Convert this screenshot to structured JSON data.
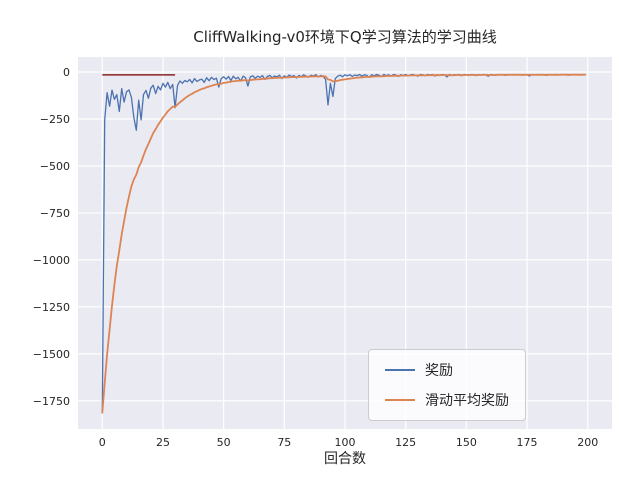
{
  "chart_data": {
    "type": "line",
    "title": "CliffWalking-v0环境下Q学习算法的学习曲线",
    "xlabel": "回合数",
    "ylabel": "",
    "grid": true,
    "legend_position": "lower right",
    "xlim": [
      -10,
      210
    ],
    "ylim": [
      -1900,
      80
    ],
    "xticks": [
      0,
      25,
      50,
      75,
      100,
      125,
      150,
      175,
      200
    ],
    "yticks": [
      0,
      -250,
      -500,
      -750,
      -1000,
      -1250,
      -1500,
      -1750
    ],
    "x": {
      "start": 0,
      "step": 1,
      "count": 200
    },
    "series": [
      {
        "name": "奖励",
        "color": "#4c72b0",
        "values": [
          -1813,
          -256,
          -110,
          -182,
          -96,
          -145,
          -120,
          -210,
          -88,
          -160,
          -105,
          -95,
          -135,
          -240,
          -310,
          -150,
          -255,
          -120,
          -98,
          -140,
          -86,
          -70,
          -115,
          -76,
          -95,
          -60,
          -80,
          -55,
          -88,
          -66,
          -190,
          -72,
          -48,
          -60,
          -45,
          -52,
          -40,
          -58,
          -35,
          -50,
          -42,
          -38,
          -55,
          -30,
          -46,
          -28,
          -40,
          -33,
          -80,
          -35,
          -25,
          -38,
          -24,
          -45,
          -22,
          -36,
          -28,
          -48,
          -22,
          -30,
          -75,
          -26,
          -20,
          -34,
          -22,
          -28,
          -19,
          -40,
          -24,
          -18,
          -30,
          -21,
          -26,
          -17,
          -35,
          -20,
          -28,
          -16,
          -24,
          -19,
          -32,
          -18,
          -25,
          -15,
          -22,
          -27,
          -17,
          -21,
          -14,
          -26,
          -18,
          -22,
          -40,
          -175,
          -60,
          -130,
          -35,
          -22,
          -17,
          -25,
          -15,
          -20,
          -14,
          -24,
          -16,
          -19,
          -13,
          -22,
          -15,
          -18,
          -28,
          -14,
          -20,
          -13,
          -17,
          -23,
          -13,
          -19,
          -15,
          -21,
          -13,
          -16,
          -24,
          -14,
          -18,
          -13,
          -20,
          -15,
          -13,
          -17,
          -22,
          -13,
          -15,
          -19,
          -13,
          -16,
          -13,
          -21,
          -14,
          -17,
          -13,
          -15,
          -26,
          -13,
          -18,
          -14,
          -16,
          -13,
          -20,
          -13,
          -15,
          -17,
          -13,
          -14,
          -19,
          -13,
          -16,
          -13,
          -15,
          -22,
          -13,
          -14,
          -17,
          -13,
          -15,
          -13,
          -18,
          -13,
          -14,
          -16,
          -13,
          -15,
          -13,
          -17,
          -13,
          -14,
          -21,
          -13,
          -15,
          -13,
          -16,
          -13,
          -14,
          -18,
          -13,
          -15,
          -13,
          -14,
          -16,
          -13,
          -15,
          -13,
          -17,
          -13,
          -14,
          -13,
          -16,
          -13,
          -14,
          -13
        ]
      },
      {
        "name": "滑动平均奖励",
        "color": "#dd8452",
        "values": [
          -1813,
          -1657,
          -1503,
          -1371,
          -1243,
          -1133,
          -1032,
          -950,
          -864,
          -793,
          -724,
          -662,
          -609,
          -572,
          -546,
          -506,
          -481,
          -445,
          -410,
          -383,
          -354,
          -325,
          -304,
          -281,
          -263,
          -242,
          -226,
          -209,
          -197,
          -184,
          -185,
          -173,
          -161,
          -151,
          -140,
          -131,
          -122,
          -116,
          -108,
          -102,
          -96,
          -90,
          -87,
          -81,
          -77,
          -73,
          -69,
          -66,
          -65,
          -62,
          -58,
          -56,
          -53,
          -52,
          -49,
          -48,
          -46,
          -46,
          -44,
          -43,
          -45,
          -43,
          -41,
          -40,
          -39,
          -38,
          -36,
          -36,
          -35,
          -33,
          -33,
          -32,
          -31,
          -30,
          -30,
          -29,
          -29,
          -28,
          -27,
          -27,
          -27,
          -26,
          -26,
          -25,
          -25,
          -25,
          -24,
          -24,
          -23,
          -23,
          -23,
          -22,
          -24,
          -39,
          -42,
          -50,
          -49,
          -46,
          -43,
          -41,
          -39,
          -37,
          -35,
          -34,
          -32,
          -30,
          -29,
          -28,
          -27,
          -26,
          -26,
          -25,
          -24,
          -23,
          -23,
          -23,
          -22,
          -21,
          -21,
          -21,
          -20,
          -20,
          -20,
          -19,
          -19,
          -19,
          -19,
          -18,
          -18,
          -18,
          -18,
          -18,
          -17,
          -18,
          -17,
          -17,
          -17,
          -17,
          -17,
          -17,
          -16,
          -16,
          -17,
          -17,
          -17,
          -17,
          -16,
          -16,
          -17,
          -16,
          -16,
          -16,
          -16,
          -16,
          -16,
          -16,
          -16,
          -15,
          -15,
          -16,
          -16,
          -16,
          -16,
          -15,
          -15,
          -15,
          -15,
          -15,
          -15,
          -15,
          -15,
          -15,
          -15,
          -15,
          -15,
          -15,
          -15,
          -15,
          -15,
          -15,
          -15,
          -15,
          -15,
          -15,
          -15,
          -15,
          -15,
          -14,
          -15,
          -14,
          -14,
          -14,
          -14,
          -15,
          -14,
          -14,
          -14,
          -15,
          -14,
          -14
        ]
      }
    ],
    "annotations": [
      {
        "type": "hline-segment",
        "x0": 0,
        "x1": 30,
        "y": -15,
        "color": "#8b2525"
      }
    ]
  },
  "colors": {
    "figure_bg": "#ffffff",
    "plot_bg": "#eaeaf2",
    "grid": "#ffffff",
    "text": "#262626",
    "legend_border": "#cccccc"
  }
}
